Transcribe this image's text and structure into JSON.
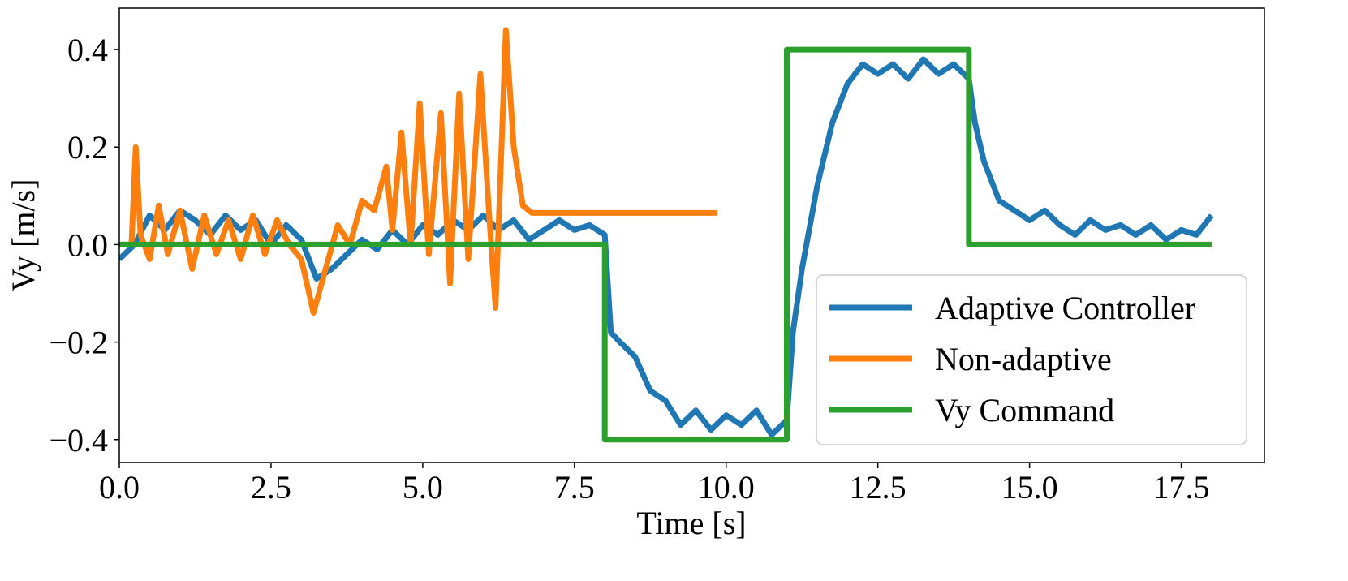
{
  "chart_data": {
    "type": "line",
    "xlabel": "Time [s]",
    "ylabel": "Vy [m/s]",
    "xlim": [
      0,
      18.87
    ],
    "ylim": [
      -0.447,
      0.485
    ],
    "xticks": [
      {
        "value": 0,
        "label": "0.0"
      },
      {
        "value": 2.5,
        "label": "2.5"
      },
      {
        "value": 5,
        "label": "5.0"
      },
      {
        "value": 7.5,
        "label": "7.5"
      },
      {
        "value": 10,
        "label": "10.0"
      },
      {
        "value": 12.5,
        "label": "12.5"
      },
      {
        "value": 15,
        "label": "15.0"
      },
      {
        "value": 17.5,
        "label": "17.5"
      }
    ],
    "yticks": [
      {
        "value": -0.4,
        "label": "−0.4"
      },
      {
        "value": -0.2,
        "label": "−0.2"
      },
      {
        "value": 0,
        "label": "0.0"
      },
      {
        "value": 0.2,
        "label": "0.2"
      },
      {
        "value": 0.4,
        "label": "0.4"
      }
    ],
    "grid": false,
    "legend": "lower right",
    "series": [
      {
        "name": "Adaptive Controller",
        "color": "#1f77b4",
        "x": [
          0,
          0.25,
          0.5,
          0.75,
          1,
          1.25,
          1.5,
          1.75,
          2,
          2.25,
          2.5,
          2.75,
          3,
          3.25,
          3.5,
          3.75,
          4,
          4.25,
          4.5,
          4.75,
          5,
          5.25,
          5.5,
          5.75,
          6,
          6.25,
          6.5,
          6.75,
          7,
          7.25,
          7.5,
          7.75,
          8,
          8.1,
          8.25,
          8.5,
          8.75,
          9,
          9.25,
          9.5,
          9.75,
          10,
          10.25,
          10.5,
          10.75,
          11,
          11.1,
          11.25,
          11.5,
          11.75,
          12,
          12.25,
          12.5,
          12.75,
          13,
          13.25,
          13.5,
          13.75,
          14,
          14.1,
          14.25,
          14.5,
          14.75,
          15,
          15.25,
          15.5,
          15.75,
          16,
          16.25,
          16.5,
          16.75,
          17,
          17.25,
          17.5,
          17.75,
          18
        ],
        "values": [
          -0.03,
          0,
          0.06,
          0.03,
          0.07,
          0.05,
          0.02,
          0.06,
          0.03,
          0.05,
          0,
          0.04,
          0.01,
          -0.07,
          -0.05,
          -0.02,
          0.01,
          -0.01,
          0.03,
          0,
          0.04,
          0.02,
          0.05,
          0.03,
          0.06,
          0.03,
          0.05,
          0.01,
          0.03,
          0.05,
          0.03,
          0.04,
          0.02,
          -0.18,
          -0.2,
          -0.23,
          -0.3,
          -0.32,
          -0.37,
          -0.34,
          -0.38,
          -0.35,
          -0.37,
          -0.34,
          -0.39,
          -0.36,
          -0.18,
          -0.05,
          0.12,
          0.25,
          0.33,
          0.37,
          0.35,
          0.37,
          0.34,
          0.38,
          0.35,
          0.37,
          0.34,
          0.25,
          0.17,
          0.09,
          0.07,
          0.05,
          0.07,
          0.04,
          0.02,
          0.05,
          0.03,
          0.04,
          0.02,
          0.04,
          0.01,
          0.03,
          0.02,
          0.06
        ]
      },
      {
        "name": "Non-adaptive",
        "color": "#ff7f0e",
        "x": [
          0,
          0.2,
          0.27,
          0.35,
          0.5,
          0.65,
          0.8,
          1,
          1.2,
          1.4,
          1.6,
          1.8,
          2,
          2.2,
          2.4,
          2.6,
          2.8,
          3,
          3.2,
          3.4,
          3.6,
          3.8,
          4,
          4.2,
          4.4,
          4.5,
          4.65,
          4.8,
          4.95,
          5.1,
          5.3,
          5.45,
          5.6,
          5.75,
          5.95,
          6.1,
          6.2,
          6.37,
          6.5,
          6.65,
          6.8,
          7.5,
          9.85
        ],
        "values": [
          0,
          0,
          0.2,
          0.02,
          -0.03,
          0.08,
          -0.02,
          0.07,
          -0.05,
          0.06,
          -0.02,
          0.05,
          -0.03,
          0.06,
          -0.02,
          0.05,
          0,
          -0.03,
          -0.14,
          -0.05,
          0.04,
          0,
          0.09,
          0.07,
          0.16,
          0.03,
          0.23,
          0,
          0.29,
          -0.02,
          0.27,
          -0.08,
          0.31,
          -0.03,
          0.35,
          0.05,
          -0.13,
          0.44,
          0.2,
          0.08,
          0.065,
          0.065,
          0.065
        ]
      },
      {
        "name": "Vy Command",
        "color": "#2ca02c",
        "x": [
          0,
          8,
          8,
          11,
          11,
          14,
          14,
          18
        ],
        "values": [
          0,
          0,
          -0.4,
          -0.4,
          0.4,
          0.4,
          0,
          0
        ]
      }
    ]
  }
}
